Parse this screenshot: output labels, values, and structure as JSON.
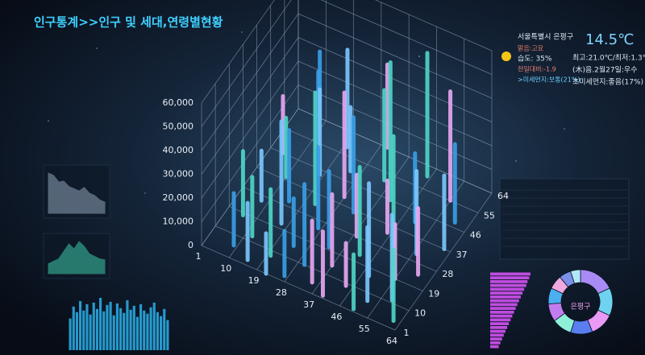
{
  "header": {
    "title": "인구통계>>인구 및 세대,연령별현황"
  },
  "weather": {
    "location": "서울특별시 은평구",
    "temperature": "14.5℃",
    "condition": "맑음:고요",
    "humidity": "습도: 35%",
    "change": "전일대비:-1.9",
    "fine_dust": ">미세먼지:보통(21%)",
    "high_low": "최고:21.0℃/최저:1.3℃",
    "date": "(木)음.2월27일:우수",
    "ultrafine_dust": "초미세먼지:좋음(17%)"
  },
  "chart_data": [
    {
      "type": "bar3d",
      "zlim": [
        0,
        60000
      ],
      "zticks": [
        0,
        {
          "value": 10000,
          "label": "10,000"
        },
        {
          "value": 20000,
          "label": "20,000"
        },
        {
          "value": 30000,
          "label": "30,000"
        },
        {
          "value": 40000,
          "label": "40,000"
        },
        {
          "value": 50000,
          "label": "50,000"
        },
        {
          "value": 60000,
          "label": "60,000"
        }
      ],
      "xlim": [
        1,
        64
      ],
      "xticks": [
        1,
        10,
        19,
        28,
        37,
        46,
        55,
        64
      ],
      "ylim": [
        1,
        64
      ],
      "yticks": [
        1,
        10,
        19,
        28,
        37,
        46,
        55,
        64
      ],
      "x": [
        8,
        30,
        45,
        20,
        12,
        55,
        35,
        25,
        60,
        5,
        40,
        18,
        50,
        28,
        10,
        62,
        33,
        45,
        22,
        56,
        15,
        38,
        50,
        8,
        27,
        60,
        42,
        17,
        33,
        55,
        6,
        48,
        24,
        37,
        12,
        58,
        30,
        44,
        20,
        52,
        9,
        35,
        62,
        15,
        27,
        40,
        50,
        22
      ],
      "y": [
        64,
        64,
        60,
        58,
        55,
        55,
        52,
        50,
        48,
        46,
        46,
        44,
        42,
        40,
        38,
        37,
        36,
        34,
        33,
        31,
        30,
        28,
        28,
        26,
        25,
        24,
        22,
        21,
        20,
        19,
        18,
        16,
        15,
        14,
        12,
        11,
        10,
        9,
        8,
        7,
        6,
        5,
        4,
        3,
        3,
        2,
        2,
        1
      ],
      "values": [
        28000,
        35000,
        52000,
        41000,
        30000,
        46000,
        38000,
        27000,
        33000,
        24000,
        58000,
        36000,
        29000,
        44000,
        25000,
        31000,
        40000,
        22000,
        47000,
        35000,
        30000,
        26000,
        49000,
        21000,
        34000,
        28000,
        37000,
        43000,
        32000,
        23000,
        27000,
        39000,
        20000,
        30000,
        25000,
        36000,
        34000,
        18000,
        28000,
        31000,
        22000,
        26000,
        30000,
        24000,
        19000,
        27000,
        23000,
        17000
      ],
      "palette": [
        "#3aa0e8",
        "#e9a8f2",
        "#4fd7c8",
        "#7bc8ff"
      ],
      "grid": true
    },
    {
      "type": "area",
      "values": [
        90,
        85,
        70,
        72,
        60,
        55,
        50,
        58,
        45,
        40,
        30,
        25
      ],
      "color": "#8fa3b8"
    },
    {
      "type": "area",
      "values": [
        20,
        25,
        30,
        45,
        60,
        50,
        65,
        55,
        40,
        35,
        30,
        28
      ],
      "color": "#3ec8a8"
    },
    {
      "type": "bar",
      "values": [
        40,
        55,
        48,
        62,
        50,
        58,
        45,
        60,
        52,
        66,
        49,
        57,
        61,
        44,
        59,
        53,
        47,
        63,
        51,
        56,
        42,
        58,
        50,
        46,
        54,
        60,
        48,
        43,
        52,
        38
      ],
      "color": "#29a8e0"
    },
    {
      "type": "hbar",
      "values": [
        95,
        92,
        88,
        85,
        80,
        76,
        72,
        68,
        64,
        60,
        56,
        52,
        48,
        44,
        40,
        36,
        32,
        28,
        24,
        20
      ],
      "color": "#c04ce0"
    },
    {
      "type": "donut",
      "label": "은평구",
      "values": [
        18,
        14,
        12,
        11,
        10,
        9,
        8,
        7,
        6,
        5
      ],
      "colors": [
        "#a98bf5",
        "#6fd3f0",
        "#e89af5",
        "#5a7ef0",
        "#8ff0d8",
        "#c27cf0",
        "#4ab0f0",
        "#f0a8e0",
        "#7a90e8",
        "#b0e8f8"
      ]
    }
  ]
}
